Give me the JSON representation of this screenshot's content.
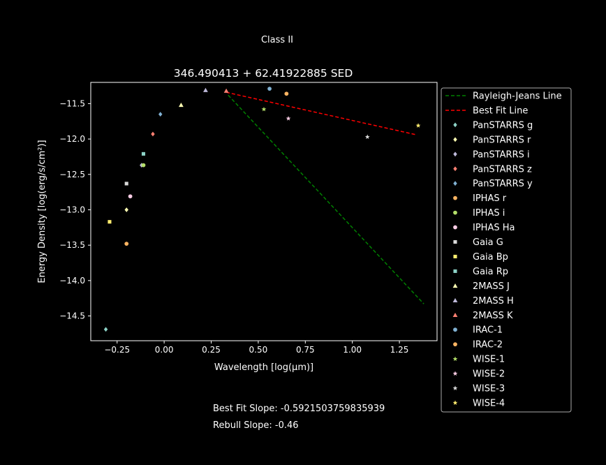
{
  "figure": {
    "suptitle": "Class II",
    "footer_slope": "Best Fit Slope: -0.5921503759835939",
    "footer_rebull": "Rebull Slope: -0.46"
  },
  "chart_data": {
    "type": "scatter",
    "title": "346.490413 + 62.41922885 SED",
    "xlabel": "Wavelength [log(μm)]",
    "ylabel": "Energy Density [log(erg/s/cm²)]",
    "xlim": [
      -0.39,
      1.45
    ],
    "ylim": [
      -14.85,
      -11.2
    ],
    "xticks": [
      -0.25,
      0.0,
      0.25,
      0.5,
      0.75,
      1.0,
      1.25
    ],
    "xtick_labels": [
      "−0.25",
      "0.00",
      "0.25",
      "0.50",
      "0.75",
      "1.00",
      "1.25"
    ],
    "yticks": [
      -11.5,
      -12.0,
      -12.5,
      -13.0,
      -13.5,
      -14.0,
      -14.5
    ],
    "ytick_labels": [
      "−11.5",
      "−12.0",
      "−12.5",
      "−13.0",
      "−13.5",
      "−14.0",
      "−14.5"
    ],
    "grid": false,
    "legend_position": "outside-right",
    "lines": [
      {
        "name": "Rayleigh-Jeans Line",
        "color": "#008000",
        "style": "dashed",
        "x": [
          0.34,
          1.38
        ],
        "y": [
          -11.38,
          -14.33
        ]
      },
      {
        "name": "Best Fit Line",
        "color": "#ff0000",
        "style": "dashed",
        "x": [
          0.33,
          1.34
        ],
        "y": [
          -11.34,
          -11.94
        ]
      }
    ],
    "series": [
      {
        "name": "PanSTARRS g",
        "marker": "diamond",
        "color": "#8dd3c7",
        "x": [
          -0.31
        ],
        "y": [
          -14.69
        ]
      },
      {
        "name": "PanSTARRS r",
        "marker": "diamond",
        "color": "#ffffb3",
        "x": [
          -0.2
        ],
        "y": [
          -13.0
        ]
      },
      {
        "name": "PanSTARRS i",
        "marker": "diamond",
        "color": "#bebada",
        "x": [
          -0.12
        ],
        "y": [
          -12.37
        ]
      },
      {
        "name": "PanSTARRS z",
        "marker": "diamond",
        "color": "#fb8072",
        "x": [
          -0.06
        ],
        "y": [
          -11.93
        ]
      },
      {
        "name": "PanSTARRS y",
        "marker": "diamond",
        "color": "#80b1d3",
        "x": [
          -0.02
        ],
        "y": [
          -11.65
        ]
      },
      {
        "name": "IPHAS r",
        "marker": "circle",
        "color": "#fdb462",
        "x": [
          -0.2
        ],
        "y": [
          -13.48
        ]
      },
      {
        "name": "IPHAS i",
        "marker": "circle",
        "color": "#b3de69",
        "x": [
          -0.11
        ],
        "y": [
          -12.37
        ]
      },
      {
        "name": "IPHAS Ha",
        "marker": "circle",
        "color": "#fccde5",
        "x": [
          -0.18
        ],
        "y": [
          -12.81
        ]
      },
      {
        "name": "Gaia G",
        "marker": "square",
        "color": "#d9d9d9",
        "x": [
          -0.2
        ],
        "y": [
          -12.63
        ]
      },
      {
        "name": "Gaia Bp",
        "marker": "square",
        "color": "#ffed6f",
        "x": [
          -0.29
        ],
        "y": [
          -13.17
        ]
      },
      {
        "name": "Gaia Rp",
        "marker": "square",
        "color": "#8dd3c7",
        "x": [
          -0.11
        ],
        "y": [
          -12.21
        ]
      },
      {
        "name": "2MASS J",
        "marker": "triangle",
        "color": "#ffffb3",
        "x": [
          0.09
        ],
        "y": [
          -11.52
        ]
      },
      {
        "name": "2MASS H",
        "marker": "triangle",
        "color": "#bebada",
        "x": [
          0.22
        ],
        "y": [
          -11.31
        ]
      },
      {
        "name": "2MASS K",
        "marker": "triangle",
        "color": "#fb8072",
        "x": [
          0.33
        ],
        "y": [
          -11.32
        ]
      },
      {
        "name": "IRAC-1",
        "marker": "circle",
        "color": "#80b1d3",
        "x": [
          0.56
        ],
        "y": [
          -11.29
        ]
      },
      {
        "name": "IRAC-2",
        "marker": "circle",
        "color": "#fdb462",
        "x": [
          0.65
        ],
        "y": [
          -11.36
        ]
      },
      {
        "name": "WISE-1",
        "marker": "star",
        "color": "#b3de69",
        "x": [
          0.53
        ],
        "y": [
          -11.58
        ]
      },
      {
        "name": "WISE-2",
        "marker": "star",
        "color": "#fccde5",
        "x": [
          0.66
        ],
        "y": [
          -11.71
        ]
      },
      {
        "name": "WISE-3",
        "marker": "star",
        "color": "#d9d9d9",
        "x": [
          1.08
        ],
        "y": [
          -11.97
        ]
      },
      {
        "name": "WISE-4",
        "marker": "star",
        "color": "#ffed6f",
        "x": [
          1.35
        ],
        "y": [
          -11.81
        ]
      }
    ]
  }
}
